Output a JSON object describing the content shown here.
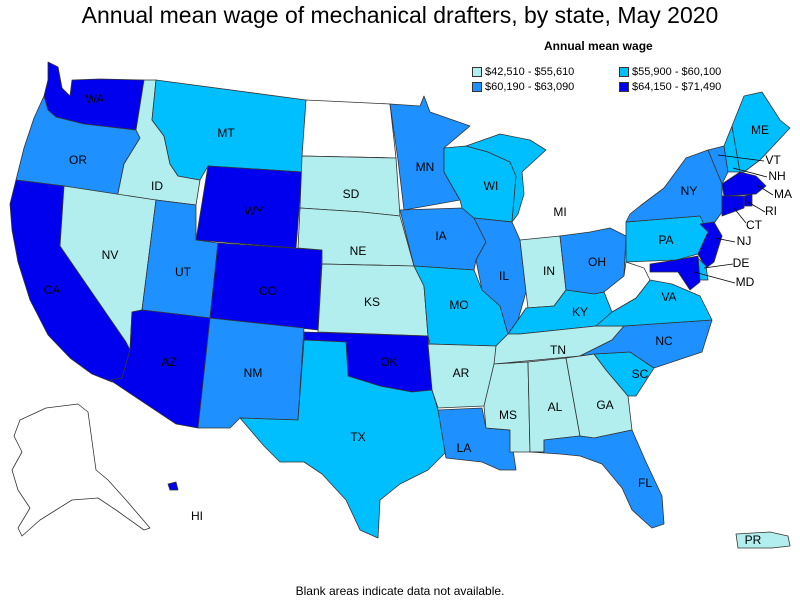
{
  "title": "Annual mean wage of mechanical drafters, by state, May 2020",
  "legend": {
    "title": "Annual mean wage",
    "items": [
      {
        "range": "$42,510 - $55,610",
        "color": "#b2eeee"
      },
      {
        "range": "$55,900 - $60,100",
        "color": "#00bfff"
      },
      {
        "range": "$60,190 - $63,090",
        "color": "#1e90ff"
      },
      {
        "range": "$64,150 - $71,490",
        "color": "#0000ee"
      }
    ]
  },
  "colors": {
    "tier1": "#b2eeee",
    "tier2": "#00bfff",
    "tier3": "#1e90ff",
    "tier4": "#0000ee",
    "no_data": "#ffffff"
  },
  "states": {
    "WA": {
      "label": "WA",
      "tier": 4
    },
    "OR": {
      "label": "OR",
      "tier": 3
    },
    "CA": {
      "label": "CA",
      "tier": 4
    },
    "ID": {
      "label": "ID",
      "tier": 1
    },
    "NV": {
      "label": "NV",
      "tier": 1
    },
    "MT": {
      "label": "MT",
      "tier": 2
    },
    "WY": {
      "label": "WY",
      "tier": 4
    },
    "UT": {
      "label": "UT",
      "tier": 3
    },
    "AZ": {
      "label": "AZ",
      "tier": 4
    },
    "CO": {
      "label": "CO",
      "tier": 4
    },
    "NM": {
      "label": "NM",
      "tier": 3
    },
    "ND": {
      "label": "",
      "tier": 0
    },
    "SD": {
      "label": "SD",
      "tier": 1
    },
    "NE": {
      "label": "NE",
      "tier": 1
    },
    "KS": {
      "label": "KS",
      "tier": 1
    },
    "OK": {
      "label": "OK",
      "tier": 4
    },
    "TX": {
      "label": "TX",
      "tier": 2
    },
    "MN": {
      "label": "MN",
      "tier": 3
    },
    "IA": {
      "label": "IA",
      "tier": 3
    },
    "MO": {
      "label": "MO",
      "tier": 2
    },
    "AR": {
      "label": "AR",
      "tier": 1
    },
    "LA": {
      "label": "LA",
      "tier": 3
    },
    "WI": {
      "label": "WI",
      "tier": 2
    },
    "IL": {
      "label": "IL",
      "tier": 3
    },
    "MI": {
      "label": "MI",
      "tier": 2
    },
    "IN": {
      "label": "IN",
      "tier": 1
    },
    "OH": {
      "label": "OH",
      "tier": 3
    },
    "KY": {
      "label": "KY",
      "tier": 2
    },
    "TN": {
      "label": "TN",
      "tier": 1
    },
    "MS": {
      "label": "MS",
      "tier": 1
    },
    "AL": {
      "label": "AL",
      "tier": 1
    },
    "GA": {
      "label": "GA",
      "tier": 1
    },
    "FL": {
      "label": "FL",
      "tier": 3
    },
    "SC": {
      "label": "SC",
      "tier": 2
    },
    "NC": {
      "label": "NC",
      "tier": 3
    },
    "VA": {
      "label": "VA",
      "tier": 2
    },
    "WV": {
      "label": "",
      "tier": 0
    },
    "PA": {
      "label": "PA",
      "tier": 2
    },
    "NY": {
      "label": "NY",
      "tier": 3
    },
    "ME": {
      "label": "ME",
      "tier": 2
    },
    "VT": {
      "label": "VT",
      "tier": 3
    },
    "NH": {
      "label": "NH",
      "tier": 2
    },
    "MA": {
      "label": "MA",
      "tier": 4
    },
    "RI": {
      "label": "RI",
      "tier": 4
    },
    "CT": {
      "label": "CT",
      "tier": 4
    },
    "NJ": {
      "label": "NJ",
      "tier": 4
    },
    "DE": {
      "label": "DE",
      "tier": 2
    },
    "MD": {
      "label": "MD",
      "tier": 4
    },
    "AK": {
      "label": "",
      "tier": 0
    },
    "HI": {
      "label": "HI",
      "tier": 4
    },
    "PR": {
      "label": "PR",
      "tier": 1
    }
  },
  "footnote": "Blank areas indicate data not available."
}
